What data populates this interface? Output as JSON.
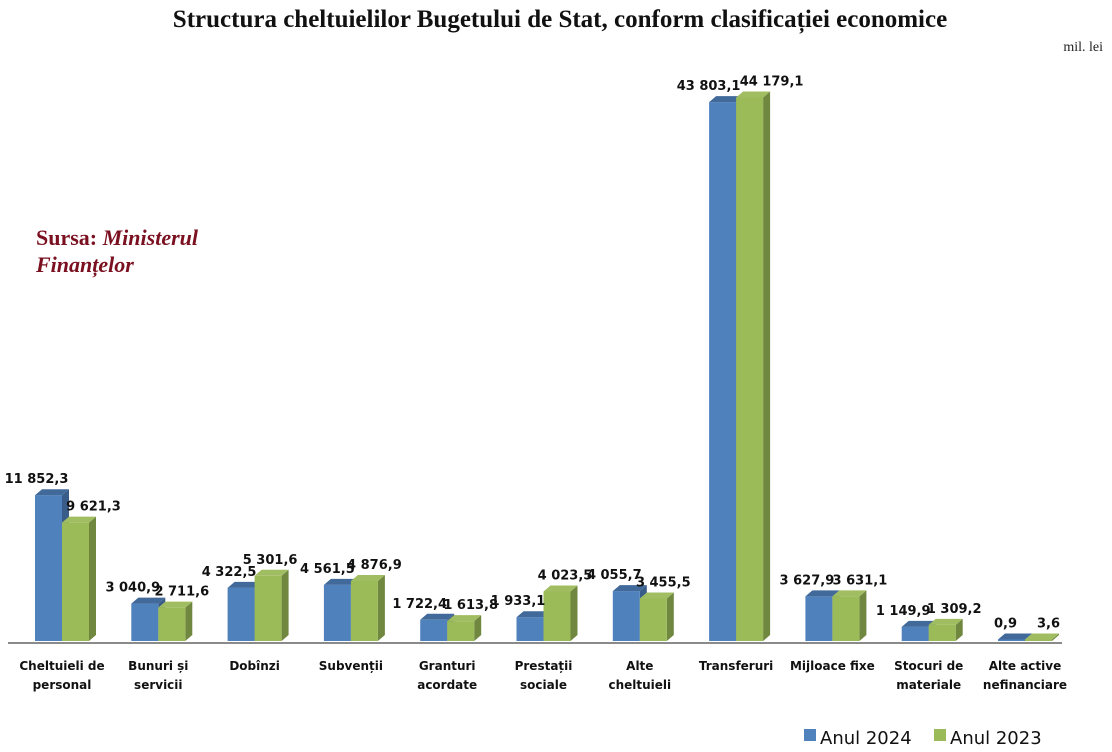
{
  "chart_data": {
    "type": "bar",
    "title": "Structura cheltuielilor Bugetului de Stat, conform clasificației economice",
    "unit_label": "mil. lei",
    "source_prefix": "Sursa:",
    "source_line1": "Ministerul",
    "source_line2": "Finanțelor",
    "categories": [
      [
        "Cheltuieli de",
        "personal"
      ],
      [
        "Bunuri și",
        "servicii"
      ],
      [
        "Dobînzi"
      ],
      [
        "Subvenții"
      ],
      [
        "Granturi",
        "acordate"
      ],
      [
        "Prestații",
        "sociale"
      ],
      [
        "Alte",
        "cheltuieli"
      ],
      [
        "Transferuri"
      ],
      [
        "Mijloace fixe"
      ],
      [
        "Stocuri de",
        "materiale"
      ],
      [
        "Alte active",
        "nefinanciare"
      ]
    ],
    "series": [
      {
        "name": "Anul 2024",
        "color": "#4f81bd",
        "values": [
          11852.3,
          3040.9,
          4322.5,
          4561.5,
          1722.4,
          1933.1,
          4055.7,
          43803.1,
          3627.9,
          1149.9,
          0.9
        ],
        "labels": [
          "11 852,3",
          "3 040,9",
          "4 322,5",
          "4 561,5",
          "1 722,4",
          "1 933,1",
          "4 055,7",
          "43 803,1",
          "3 627,9",
          "1 149,9",
          "0,9"
        ]
      },
      {
        "name": "Anul 2023",
        "color": "#9bbb59",
        "values": [
          9621.3,
          2711.6,
          5301.6,
          4876.9,
          1613.8,
          4023.5,
          3455.5,
          44179.1,
          3631.1,
          1309.2,
          3.6
        ],
        "labels": [
          "9 621,3",
          "2 711,6",
          "5 301,6",
          "4 876,9",
          "1 613,8",
          "4 023,5",
          "3 455,5",
          "44 179,1",
          "3 631,1",
          "1 309,2",
          "3,6"
        ]
      }
    ],
    "ylim": [
      0,
      44500
    ],
    "grid": false,
    "legend_position": "bottom-right"
  }
}
